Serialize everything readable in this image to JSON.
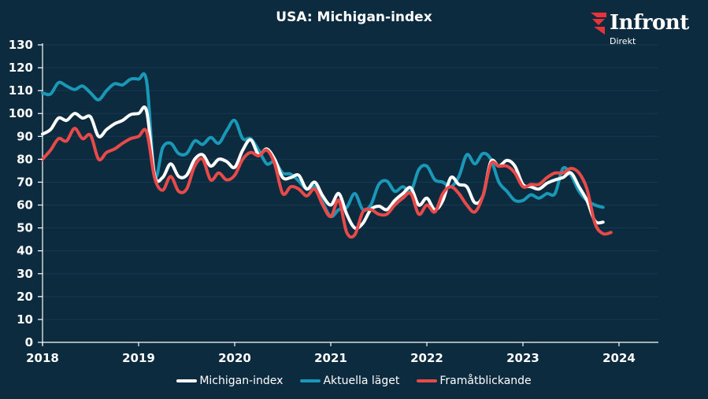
{
  "header": {
    "title": "USA: Michigan-index"
  },
  "logo": {
    "name": "Infront",
    "subtitle": "Direkt",
    "accent": "#e8333a"
  },
  "colors": {
    "background": "#0d2b3f",
    "axis": "#ffffff",
    "grid": "#173a50"
  },
  "chart_data": {
    "type": "line",
    "title": "USA: Michigan-index",
    "xlabel": "",
    "ylabel": "",
    "ylim": [
      0,
      130
    ],
    "yticks": [
      0,
      10,
      20,
      30,
      40,
      50,
      60,
      70,
      80,
      90,
      100,
      110,
      120,
      130
    ],
    "xticks": [
      "2018",
      "2019",
      "2020",
      "2021",
      "2022",
      "2023",
      "2024"
    ],
    "x_start": "2018-01",
    "x_step": "month",
    "grid": true,
    "legend_position": "bottom",
    "series": [
      {
        "name": "Michigan-index",
        "color": "#ffffff",
        "values": [
          91,
          93,
          98,
          97,
          100,
          98,
          98.5,
          90,
          93,
          95.5,
          97,
          99.5,
          100,
          101,
          73,
          72,
          78,
          72.5,
          73,
          80,
          82,
          77,
          80,
          79,
          76.5,
          84,
          88.5,
          82,
          84.5,
          80,
          72,
          72,
          73,
          67,
          70,
          64,
          60,
          65,
          56,
          50,
          52,
          58,
          59.5,
          58,
          62,
          65,
          67.5,
          60,
          63,
          58,
          62,
          72,
          69,
          68,
          61,
          64,
          79,
          77,
          79.5,
          77,
          69,
          68,
          67,
          69.5,
          71,
          72,
          74,
          68,
          62,
          53,
          52.5
        ]
      },
      {
        "name": "Aktuella läget",
        "color": "#1a98b8",
        "values": [
          109,
          108.5,
          113.5,
          112,
          110.5,
          112,
          109,
          106,
          110,
          113,
          112.5,
          115,
          115,
          114,
          73,
          85,
          87,
          82.5,
          82.5,
          88,
          86.5,
          89.5,
          87,
          92.5,
          97,
          89,
          89,
          84,
          78,
          79,
          74,
          73.5,
          70.5,
          67,
          68,
          61,
          55,
          58,
          59,
          65,
          58,
          60,
          69,
          70.5,
          66,
          68,
          66,
          75.5,
          77,
          71,
          70,
          68,
          72.5,
          82,
          78,
          82.5,
          80,
          70,
          66,
          62,
          62,
          64.5,
          63,
          65,
          65,
          76,
          73,
          66,
          62,
          60,
          59
        ]
      },
      {
        "name": "Framåtblickande",
        "color": "#e84a4a",
        "values": [
          80,
          84,
          89,
          88,
          93.5,
          89,
          90.5,
          80,
          83,
          84.5,
          87,
          89,
          90,
          92,
          72,
          66.5,
          72.5,
          66,
          67,
          77,
          80,
          71,
          74,
          71,
          73,
          80,
          83,
          81.5,
          84,
          78,
          65,
          68,
          67,
          64,
          67,
          60,
          55,
          62,
          48,
          47,
          57,
          58,
          56,
          56,
          60,
          63,
          65,
          56,
          60,
          57,
          65,
          68,
          65,
          60,
          57,
          64,
          78,
          77,
          77,
          74,
          68,
          69,
          69,
          72,
          74,
          74,
          76,
          74,
          67,
          52,
          47.5,
          48
        ]
      }
    ]
  }
}
